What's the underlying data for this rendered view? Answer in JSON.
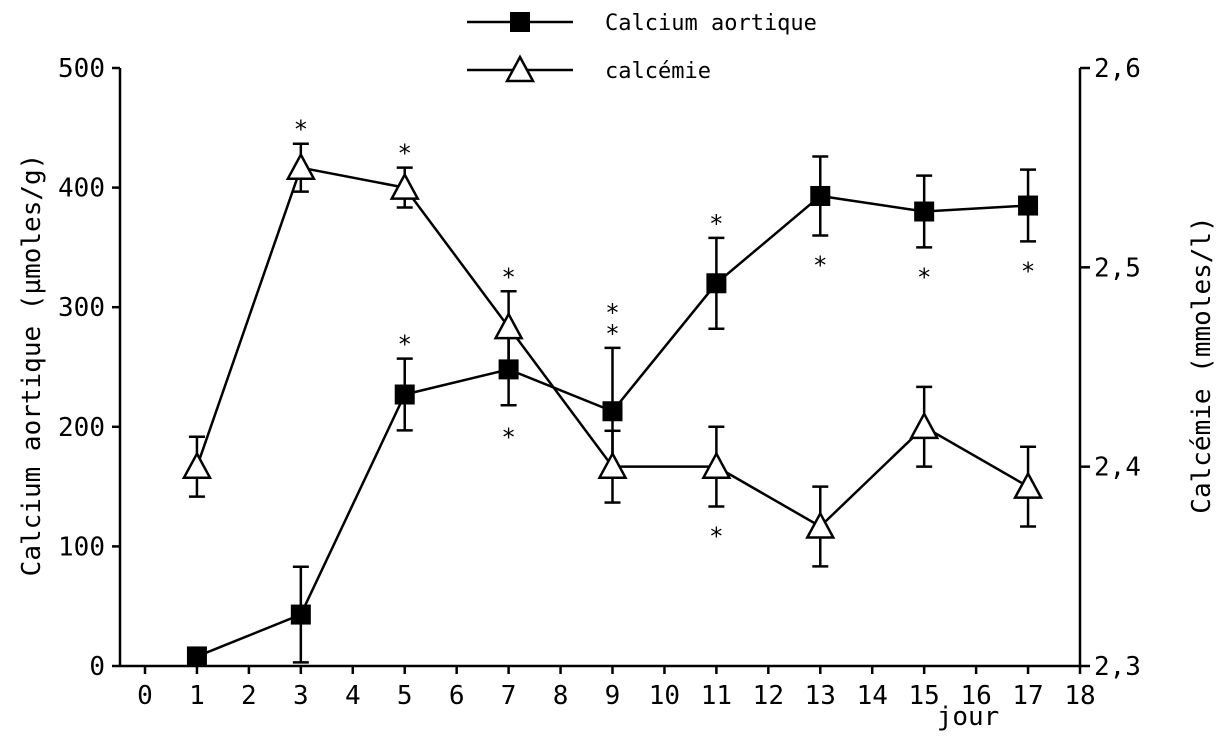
{
  "chart_data": {
    "type": "line",
    "xlabel": "jour",
    "ylabel_left": "Calcium aortique (µmoles/g)",
    "ylabel_right": "Calcémie (mmoles/l)",
    "xlim": [
      0,
      18
    ],
    "ylim_left": [
      0,
      500
    ],
    "ylim_right": [
      2.3,
      2.6
    ],
    "x_ticks": [
      "0",
      "1",
      "2",
      "3",
      "4",
      "5",
      "6",
      "7",
      "8",
      "9",
      "10",
      "11",
      "12",
      "13",
      "14",
      "15",
      "16",
      "17",
      "18"
    ],
    "y_left_ticks": [
      "0",
      "100",
      "200",
      "300",
      "400",
      "500"
    ],
    "y_right_ticks": [
      "2,3",
      "2,4",
      "2,5",
      "2,6"
    ],
    "legend_position": "top-center",
    "grid": false,
    "significance_marker": "*",
    "series": [
      {
        "name": "Calcium aortique",
        "axis": "left",
        "marker": "filled-square",
        "color": "#000000",
        "x": [
          1,
          3,
          5,
          7,
          9,
          11,
          13,
          15,
          17
        ],
        "y": [
          8,
          43,
          227,
          248,
          213,
          320,
          393,
          380,
          385
        ],
        "error": [
          0,
          40,
          30,
          30,
          53,
          38,
          33,
          30,
          30
        ],
        "significant": [
          false,
          false,
          true,
          true,
          true,
          true,
          true,
          true,
          true
        ]
      },
      {
        "name": "calcémie",
        "axis": "right",
        "marker": "open-triangle",
        "color": "#000000",
        "x": [
          1,
          3,
          5,
          7,
          9,
          11,
          13,
          15,
          17
        ],
        "y": [
          2.4,
          2.55,
          2.54,
          2.47,
          2.4,
          2.4,
          2.37,
          2.42,
          2.39
        ],
        "error": [
          0.015,
          0.012,
          0.01,
          0.018,
          0.018,
          0.02,
          0.02,
          0.02,
          0.02
        ],
        "significant": [
          false,
          true,
          true,
          true,
          true,
          true,
          false,
          false,
          false
        ]
      }
    ]
  }
}
